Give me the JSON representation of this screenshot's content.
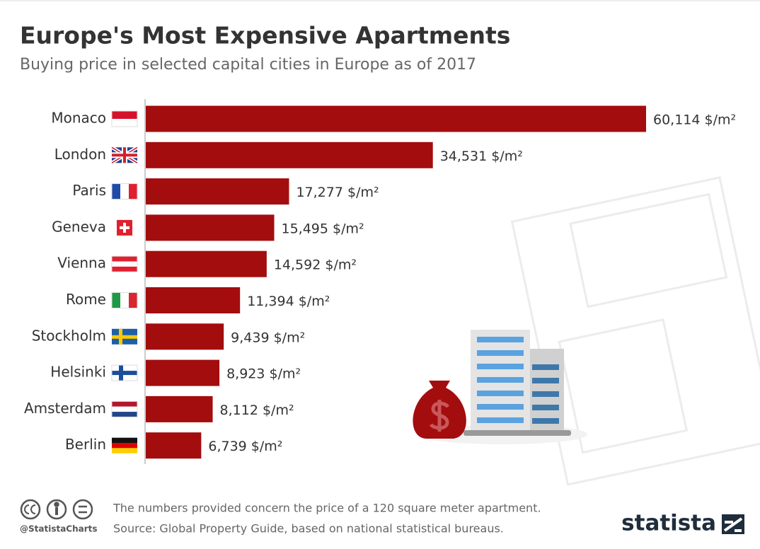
{
  "chart_data": {
    "type": "bar",
    "orientation": "horizontal",
    "title": "Europe's Most Expensive Apartments",
    "subtitle": "Buying price in selected capital cities in Europe as of 2017",
    "categories": [
      "Monaco",
      "London",
      "Paris",
      "Geneva",
      "Vienna",
      "Rome",
      "Stockholm",
      "Helsinki",
      "Amsterdam",
      "Berlin"
    ],
    "values": [
      60114,
      34531,
      17277,
      15495,
      14592,
      11394,
      9439,
      8923,
      8112,
      6739
    ],
    "value_labels": [
      "60,114 $/m²",
      "34,531 $/m²",
      "17,277 $/m²",
      "15,495 $/m²",
      "14,592 $/m²",
      "11,394 $/m²",
      "9,439 $/m²",
      "8,923 $/m²",
      "8,112 $/m²",
      "6,739 $/m²"
    ],
    "color": "#a30d0e",
    "note": "The numbers provided concern the price of a 120 square meter apartment.",
    "source": "Source: Global Property Guide, based on national statistical bureaus.",
    "handle": "@StatistaCharts",
    "brand": "statista"
  }
}
